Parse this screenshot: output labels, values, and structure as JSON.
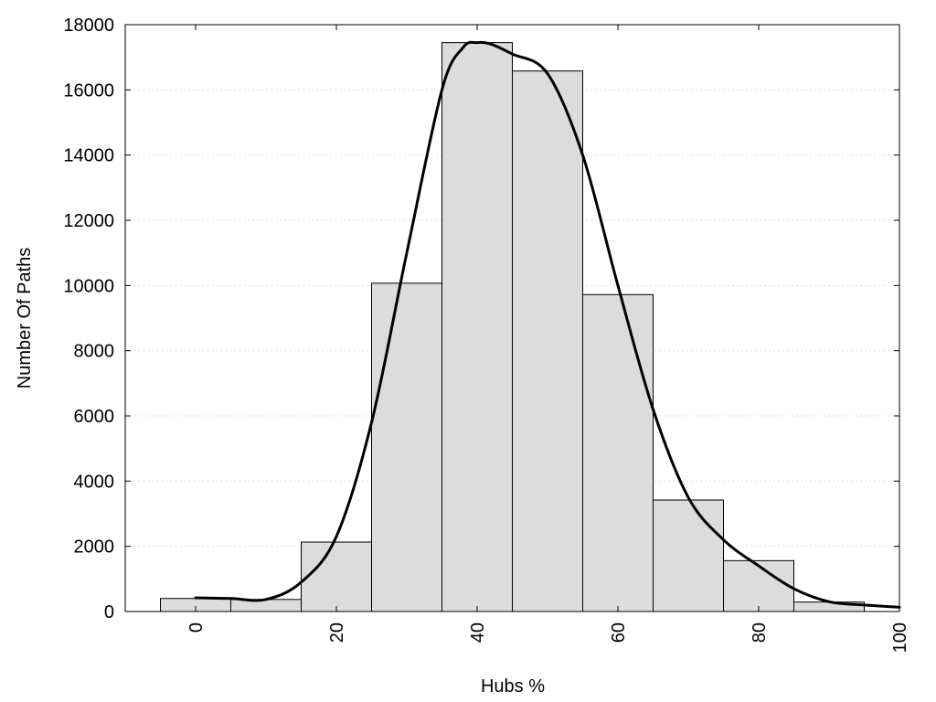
{
  "chart_data": {
    "type": "bar",
    "title": "",
    "xlabel": "Hubs %",
    "ylabel": "Number Of Paths",
    "xlim": [
      -10,
      100
    ],
    "ylim": [
      0,
      18000
    ],
    "grid": true,
    "legend": "none",
    "x_ticks": [
      0,
      20,
      40,
      60,
      80,
      100
    ],
    "y_ticks": [
      0,
      2000,
      4000,
      6000,
      8000,
      10000,
      12000,
      14000,
      16000,
      18000
    ],
    "bin_width": 10,
    "bins": [
      0,
      10,
      20,
      30,
      40,
      50,
      60,
      70,
      80,
      90
    ],
    "values": [
      400,
      370,
      2130,
      10070,
      17450,
      16580,
      9720,
      3420,
      1560,
      290
    ],
    "curve": {
      "x": [
        0,
        5,
        10,
        15,
        20,
        25,
        30,
        35,
        38,
        40,
        42,
        45,
        50,
        55,
        60,
        65,
        70,
        75,
        80,
        85,
        90,
        95,
        100
      ],
      "y": [
        420,
        400,
        370,
        900,
        2300,
        5800,
        11000,
        16000,
        17300,
        17450,
        17400,
        17100,
        16500,
        14000,
        10000,
        6200,
        3500,
        2200,
        1400,
        700,
        300,
        200,
        130
      ]
    },
    "colors": {
      "bar_fill": "#dcdcdc",
      "bar_stroke": "#000000",
      "curve": "#000000",
      "grid": "#c8c8c8"
    }
  }
}
